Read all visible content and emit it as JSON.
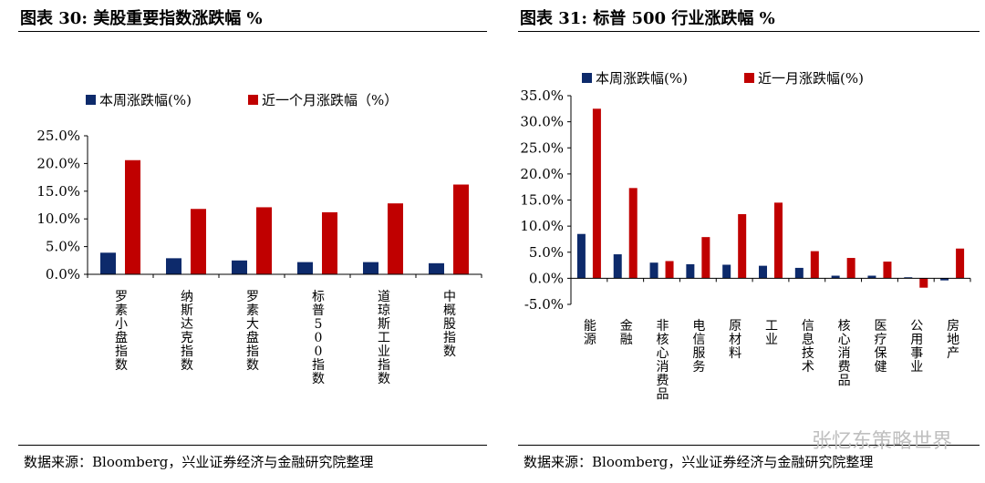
{
  "watermark": "张忆东策略世界",
  "colors": {
    "weekly": "#0d2a6b",
    "monthly": "#c00000"
  },
  "charts": [
    {
      "title": "图表 30:  美股重要指数涨跌幅  %",
      "source": "数据来源：Bloomberg，兴业证券经济与金融研究院整理",
      "chart_data": {
        "type": "bar",
        "categories": [
          "罗素小盘指数",
          "纳斯达克指数",
          "罗素大盘指数",
          "标普500指数",
          "道琼斯工业指数",
          "中概股指数"
        ],
        "series": [
          {
            "name": "本周涨跌幅(%)",
            "values": [
              3.9,
              2.9,
              2.5,
              2.2,
              2.2,
              2.0
            ]
          },
          {
            "name": "近一个月涨跌幅（%）",
            "values": [
              20.6,
              11.8,
              12.1,
              11.2,
              12.8,
              16.2
            ]
          }
        ],
        "yticks": [
          "0.0%",
          "5.0%",
          "10.0%",
          "15.0%",
          "20.0%",
          "25.0%"
        ],
        "ylim": [
          0,
          25
        ],
        "legend": "top-left",
        "grid": false
      }
    },
    {
      "title": "图表 31:  标普 500 行业涨跌幅  %",
      "source": "数据来源：Bloomberg，兴业证券经济与金融研究院整理",
      "chart_data": {
        "type": "bar",
        "categories": [
          "能源",
          "金融",
          "非核心消费品",
          "电信服务",
          "原材料",
          "工业",
          "信息技术",
          "核心消费品",
          "医疗保健",
          "公用事业",
          "房地产"
        ],
        "series": [
          {
            "name": "本周涨跌幅(%)",
            "values": [
              8.5,
              4.6,
              3.0,
              2.7,
              2.6,
              2.4,
              2.0,
              0.5,
              0.5,
              0.2,
              -0.4
            ]
          },
          {
            "name": "近一月涨跌幅(%)",
            "values": [
              32.5,
              17.3,
              3.3,
              7.9,
              12.3,
              14.5,
              5.2,
              3.9,
              3.2,
              -1.8,
              5.7
            ]
          }
        ],
        "yticks": [
          "-5.0%",
          "0.0%",
          "5.0%",
          "10.0%",
          "15.0%",
          "20.0%",
          "25.0%",
          "30.0%",
          "35.0%"
        ],
        "ylim": [
          -5,
          35
        ],
        "legend": "top-left",
        "grid": false
      }
    }
  ]
}
